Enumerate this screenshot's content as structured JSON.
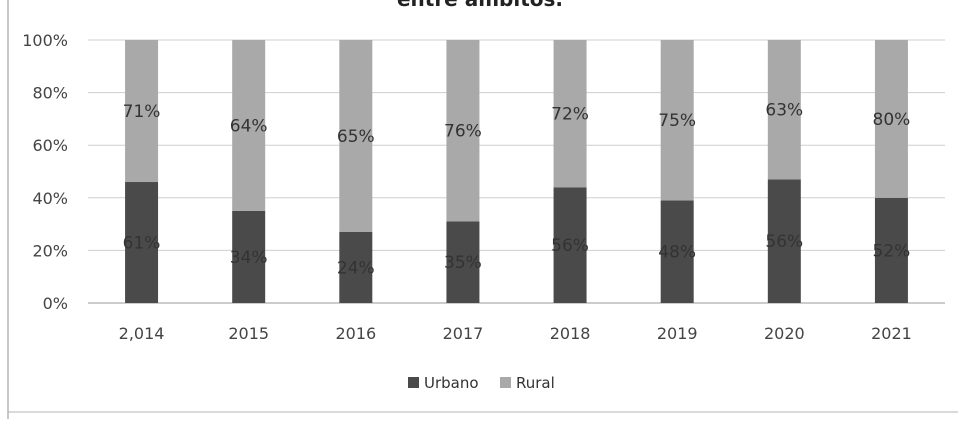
{
  "chart_data": {
    "type": "bar",
    "stacked": true,
    "percent_stacked": true,
    "title_fragment": "entre ámbitos.",
    "categories": [
      "2,014",
      "2015",
      "2016",
      "2017",
      "2018",
      "2019",
      "2020",
      "2021"
    ],
    "series": [
      {
        "name": "Urbano",
        "color": "#4a4a4a",
        "stack_share_percent": [
          46,
          35,
          27,
          31,
          44,
          39,
          47,
          40
        ],
        "data_labels": [
          "61%",
          "34%",
          "24%",
          "35%",
          "56%",
          "48%",
          "56%",
          "52%"
        ]
      },
      {
        "name": "Rural",
        "color": "#a9a9a9",
        "stack_share_percent": [
          54,
          65,
          73,
          69,
          56,
          61,
          53,
          60
        ],
        "data_labels": [
          "71%",
          "64%",
          "65%",
          "76%",
          "72%",
          "75%",
          "63%",
          "80%"
        ]
      }
    ],
    "y_ticks": [
      "0%",
      "20%",
      "40%",
      "60%",
      "80%",
      "100%"
    ],
    "ylim": [
      0,
      100
    ],
    "grid": true,
    "legend_position": "bottom"
  }
}
